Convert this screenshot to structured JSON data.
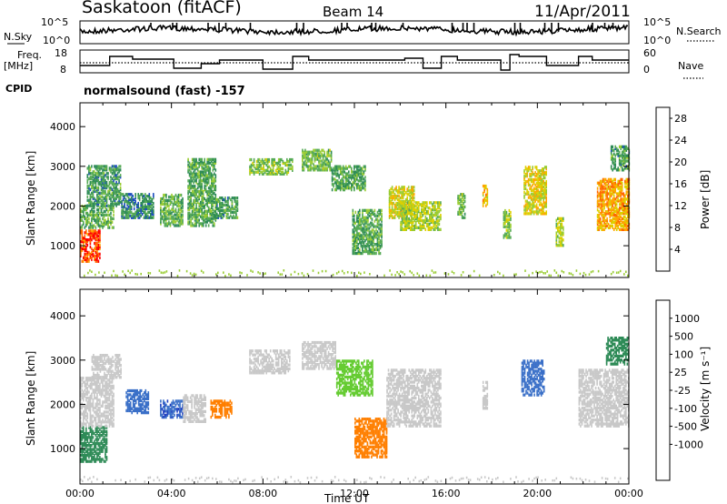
{
  "header": {
    "station": "Saskatoon (fitACF)",
    "beam": "Beam 14",
    "date": "11/Apr/2011"
  },
  "noise_panel": {
    "left_label": "N.Sky",
    "left_ticks": [
      "10^5",
      "10^0"
    ],
    "right_label": "N.Search",
    "right_ticks": [
      "10^5",
      "10^0"
    ]
  },
  "freq_panel": {
    "left_label_line1": "Freq.",
    "left_label_line2": "[MHz]",
    "left_ticks": [
      "18",
      "8"
    ],
    "right_label": "Nave",
    "right_ticks": [
      "60",
      "0"
    ]
  },
  "cpid": {
    "label": "CPID",
    "value": "normalsound (fast) -157"
  },
  "colors": {
    "power": [
      "#0000ff",
      "#1f4fbf",
      "#2e8b57",
      "#55aa55",
      "#99cc33",
      "#ddd000",
      "#ffa500",
      "#ff6600",
      "#ff0000"
    ],
    "velocity": [
      "#2040c0",
      "#3b70c8",
      "#2e8b57",
      "#66cc33",
      "#c8c8c8",
      "#c8c8c8",
      "#ffa533",
      "#ff7f00",
      "#ff3300",
      "#ff0000"
    ]
  },
  "chart_data": [
    {
      "type": "heatmap",
      "name": "power",
      "ylabel": "Slant Range [km]",
      "xlim": [
        0,
        24
      ],
      "ylim": [
        200,
        4600
      ],
      "yticks": [
        "1000",
        "2000",
        "3000",
        "4000"
      ],
      "colorbar": {
        "label": "Power [dB]",
        "ticks": [
          "4",
          "8",
          "12",
          "16",
          "20",
          "24",
          "28"
        ],
        "range": [
          0,
          30
        ]
      },
      "patches": [
        {
          "t0": 0.0,
          "t1": 0.9,
          "r0": 600,
          "r1": 1400,
          "v": 26
        },
        {
          "t0": 0.0,
          "t1": 1.5,
          "r0": 1450,
          "r1": 2000,
          "v": 12
        },
        {
          "t0": 0.3,
          "t1": 1.8,
          "r0": 2000,
          "r1": 3000,
          "v": 10
        },
        {
          "t0": 1.8,
          "t1": 3.2,
          "r0": 1700,
          "r1": 2300,
          "v": 9
        },
        {
          "t0": 3.5,
          "t1": 4.5,
          "r0": 1500,
          "r1": 2300,
          "v": 12
        },
        {
          "t0": 4.7,
          "t1": 5.9,
          "r0": 1500,
          "r1": 3200,
          "v": 11
        },
        {
          "t0": 5.9,
          "t1": 6.9,
          "r0": 1700,
          "r1": 2200,
          "v": 10
        },
        {
          "t0": 7.4,
          "t1": 9.3,
          "r0": 2800,
          "r1": 3200,
          "v": 14
        },
        {
          "t0": 9.7,
          "t1": 11.0,
          "r0": 2900,
          "r1": 3400,
          "v": 13
        },
        {
          "t0": 11.0,
          "t1": 12.5,
          "r0": 2400,
          "r1": 3000,
          "v": 11
        },
        {
          "t0": 11.9,
          "t1": 13.2,
          "r0": 800,
          "r1": 1900,
          "v": 11
        },
        {
          "t0": 13.5,
          "t1": 14.6,
          "r0": 1700,
          "r1": 2500,
          "v": 18
        },
        {
          "t0": 14.0,
          "t1": 15.8,
          "r0": 1400,
          "r1": 2100,
          "v": 16
        },
        {
          "t0": 16.5,
          "t1": 16.8,
          "r0": 1700,
          "r1": 2300,
          "v": 13
        },
        {
          "t0": 17.6,
          "t1": 17.8,
          "r0": 2000,
          "r1": 2500,
          "v": 20
        },
        {
          "t0": 18.5,
          "t1": 18.8,
          "r0": 1200,
          "r1": 1900,
          "v": 14
        },
        {
          "t0": 19.4,
          "t1": 20.4,
          "r0": 1800,
          "r1": 3000,
          "v": 18
        },
        {
          "t0": 20.8,
          "t1": 21.1,
          "r0": 1000,
          "r1": 1700,
          "v": 16
        },
        {
          "t0": 22.6,
          "t1": 24.0,
          "r0": 1400,
          "r1": 2700,
          "v": 22
        },
        {
          "t0": 23.2,
          "t1": 24.0,
          "r0": 2900,
          "r1": 3500,
          "v": 10
        }
      ]
    },
    {
      "type": "heatmap",
      "name": "velocity",
      "ylabel": "Slant Range [km]",
      "xlabel": "Time UT",
      "xlim": [
        0,
        24
      ],
      "ylim": [
        200,
        4600
      ],
      "xticks": [
        "00:00",
        "04:00",
        "08:00",
        "12:00",
        "16:00",
        "20:00",
        "00:00"
      ],
      "yticks": [
        "1000",
        "2000",
        "3000",
        "4000"
      ],
      "colorbar": {
        "label": "Velocity [m s⁻¹]",
        "ticks": [
          "1000",
          "500",
          "100",
          "25",
          "-25",
          "-100",
          "-500",
          "-1000"
        ]
      },
      "patches": [
        {
          "t0": 0.0,
          "t1": 1.2,
          "r0": 700,
          "r1": 1500,
          "v": 100
        },
        {
          "t0": 0.0,
          "t1": 1.5,
          "r0": 1500,
          "r1": 2600,
          "v": 0
        },
        {
          "t0": 0.5,
          "t1": 1.8,
          "r0": 2600,
          "r1": 3100,
          "v": 0
        },
        {
          "t0": 2.0,
          "t1": 3.0,
          "r0": 1800,
          "r1": 2300,
          "v": 500
        },
        {
          "t0": 3.5,
          "t1": 4.5,
          "r0": 1700,
          "r1": 2100,
          "v": 700
        },
        {
          "t0": 4.5,
          "t1": 5.5,
          "r0": 1600,
          "r1": 2200,
          "v": 0
        },
        {
          "t0": 5.7,
          "t1": 6.6,
          "r0": 1700,
          "r1": 2100,
          "v": -200
        },
        {
          "t0": 7.4,
          "t1": 9.2,
          "r0": 2700,
          "r1": 3200,
          "v": 0
        },
        {
          "t0": 9.7,
          "t1": 11.2,
          "r0": 2800,
          "r1": 3400,
          "v": 0
        },
        {
          "t0": 11.2,
          "t1": 12.8,
          "r0": 2200,
          "r1": 3000,
          "v": 50
        },
        {
          "t0": 12.0,
          "t1": 13.4,
          "r0": 800,
          "r1": 1700,
          "v": -200
        },
        {
          "t0": 13.4,
          "t1": 15.8,
          "r0": 1500,
          "r1": 2800,
          "v": 0
        },
        {
          "t0": 17.6,
          "t1": 17.8,
          "r0": 1900,
          "r1": 2500,
          "v": 0
        },
        {
          "t0": 19.3,
          "t1": 20.3,
          "r0": 2200,
          "r1": 3000,
          "v": 500
        },
        {
          "t0": 21.8,
          "t1": 24.0,
          "r0": 1500,
          "r1": 2800,
          "v": 0
        },
        {
          "t0": 23.0,
          "t1": 24.0,
          "r0": 2900,
          "r1": 3500,
          "v": 200
        }
      ]
    }
  ]
}
